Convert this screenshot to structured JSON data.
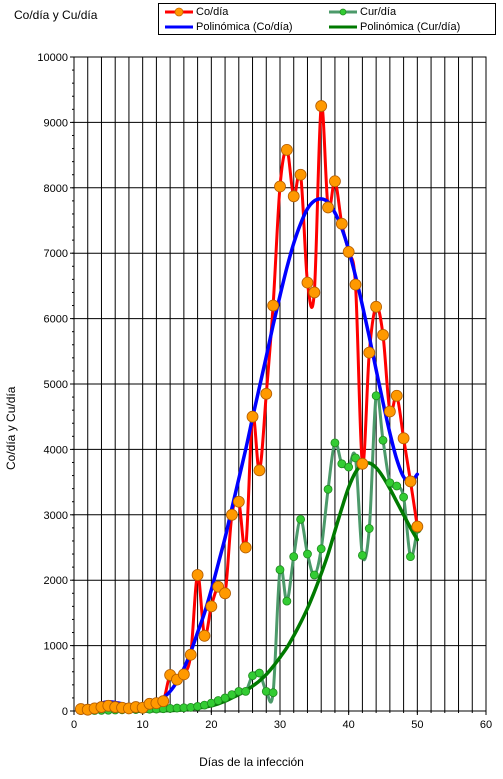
{
  "chart_data": {
    "type": "line",
    "title": "Co/día  y Cu/día",
    "xlabel": "Días de la infección",
    "ylabel": "Co/día  y Cu/día",
    "xlim": [
      0,
      60
    ],
    "ylim": [
      0,
      10000
    ],
    "x_ticks": [
      0,
      10,
      20,
      30,
      40,
      50,
      60
    ],
    "y_ticks": [
      0,
      1000,
      2000,
      3000,
      4000,
      5000,
      6000,
      7000,
      8000,
      9000,
      10000
    ],
    "grid": true,
    "legend_position": "top",
    "series": [
      {
        "name": "Co/día",
        "line_color": "#ff0000",
        "marker_color": "#ff9900",
        "marker": "circle",
        "points": [
          [
            1,
            30
          ],
          [
            2,
            20
          ],
          [
            3,
            40
          ],
          [
            4,
            60
          ],
          [
            5,
            80
          ],
          [
            6,
            60
          ],
          [
            7,
            50
          ],
          [
            8,
            40
          ],
          [
            9,
            60
          ],
          [
            10,
            50
          ],
          [
            11,
            110
          ],
          [
            12,
            120
          ],
          [
            13,
            150
          ],
          [
            14,
            550
          ],
          [
            15,
            480
          ],
          [
            16,
            560
          ],
          [
            17,
            860
          ],
          [
            18,
            2080
          ],
          [
            19,
            1150
          ],
          [
            20,
            1600
          ],
          [
            21,
            1900
          ],
          [
            22,
            1800
          ],
          [
            23,
            3000
          ],
          [
            24,
            3200
          ],
          [
            25,
            2500
          ],
          [
            26,
            4500
          ],
          [
            27,
            3680
          ],
          [
            28,
            4850
          ],
          [
            29,
            6200
          ],
          [
            30,
            8020
          ],
          [
            31,
            8580
          ],
          [
            32,
            7870
          ],
          [
            33,
            8200
          ],
          [
            34,
            6550
          ],
          [
            35,
            6400
          ],
          [
            36,
            9250
          ],
          [
            37,
            7700
          ],
          [
            38,
            8100
          ],
          [
            39,
            7450
          ],
          [
            40,
            7020
          ],
          [
            41,
            6520
          ],
          [
            42,
            3780
          ],
          [
            43,
            5480
          ],
          [
            44,
            6180
          ],
          [
            45,
            5750
          ],
          [
            46,
            4580
          ],
          [
            47,
            4820
          ],
          [
            48,
            4170
          ],
          [
            49,
            3510
          ],
          [
            50,
            2820
          ]
        ]
      },
      {
        "name": "Cur/día",
        "line_color": "#4c9a6a",
        "marker_color": "#33cc33",
        "marker": "circle",
        "points": [
          [
            1,
            10
          ],
          [
            2,
            5
          ],
          [
            3,
            8
          ],
          [
            4,
            10
          ],
          [
            5,
            12
          ],
          [
            6,
            15
          ],
          [
            7,
            18
          ],
          [
            8,
            20
          ],
          [
            9,
            22
          ],
          [
            10,
            25
          ],
          [
            11,
            28
          ],
          [
            12,
            30
          ],
          [
            13,
            35
          ],
          [
            14,
            40
          ],
          [
            15,
            45
          ],
          [
            16,
            50
          ],
          [
            17,
            55
          ],
          [
            18,
            70
          ],
          [
            19,
            90
          ],
          [
            20,
            120
          ],
          [
            21,
            160
          ],
          [
            22,
            200
          ],
          [
            23,
            250
          ],
          [
            24,
            300
          ],
          [
            25,
            300
          ],
          [
            26,
            540
          ],
          [
            27,
            580
          ],
          [
            28,
            300
          ],
          [
            29,
            280
          ],
          [
            30,
            2160
          ],
          [
            31,
            1680
          ],
          [
            32,
            2360
          ],
          [
            33,
            2930
          ],
          [
            34,
            2400
          ],
          [
            35,
            2080
          ],
          [
            36,
            2480
          ],
          [
            37,
            3390
          ],
          [
            38,
            4100
          ],
          [
            39,
            3780
          ],
          [
            40,
            3730
          ],
          [
            41,
            3870
          ],
          [
            42,
            2380
          ],
          [
            43,
            2790
          ],
          [
            44,
            4820
          ],
          [
            45,
            4140
          ],
          [
            46,
            3490
          ],
          [
            47,
            3440
          ],
          [
            48,
            3270
          ],
          [
            49,
            2360
          ],
          [
            50,
            2780
          ]
        ]
      },
      {
        "name": "Polinómica (Co/día)",
        "line_color": "#0000ff",
        "marker": "none",
        "points": [
          [
            1,
            0
          ],
          [
            2,
            40
          ],
          [
            3,
            80
          ],
          [
            4,
            120
          ],
          [
            5,
            140
          ],
          [
            6,
            130
          ],
          [
            7,
            110
          ],
          [
            8,
            80
          ],
          [
            9,
            60
          ],
          [
            10,
            60
          ],
          [
            11,
            70
          ],
          [
            12,
            110
          ],
          [
            13,
            200
          ],
          [
            14,
            300
          ],
          [
            15,
            450
          ],
          [
            16,
            650
          ],
          [
            17,
            900
          ],
          [
            18,
            1200
          ],
          [
            19,
            1500
          ],
          [
            20,
            1850
          ],
          [
            21,
            2250
          ],
          [
            22,
            2650
          ],
          [
            23,
            3100
          ],
          [
            24,
            3550
          ],
          [
            25,
            4000
          ],
          [
            26,
            4480
          ],
          [
            27,
            4950
          ],
          [
            28,
            5420
          ],
          [
            29,
            5900
          ],
          [
            30,
            6350
          ],
          [
            31,
            6780
          ],
          [
            32,
            7150
          ],
          [
            33,
            7450
          ],
          [
            34,
            7680
          ],
          [
            35,
            7800
          ],
          [
            36,
            7830
          ],
          [
            37,
            7780
          ],
          [
            38,
            7620
          ],
          [
            39,
            7380
          ],
          [
            40,
            7050
          ],
          [
            41,
            6650
          ],
          [
            42,
            6200
          ],
          [
            43,
            5720
          ],
          [
            44,
            5220
          ],
          [
            45,
            4720
          ],
          [
            46,
            4250
          ],
          [
            47,
            3850
          ],
          [
            48,
            3580
          ],
          [
            49,
            3500
          ],
          [
            50,
            3620
          ]
        ]
      },
      {
        "name": "Polinómica (Cur/día)",
        "line_color": "#007a00",
        "marker": "none",
        "points": [
          [
            1,
            0
          ],
          [
            3,
            5
          ],
          [
            5,
            5
          ],
          [
            7,
            0
          ],
          [
            9,
            -5
          ],
          [
            11,
            0
          ],
          [
            13,
            5
          ],
          [
            15,
            10
          ],
          [
            17,
            30
          ],
          [
            19,
            60
          ],
          [
            20,
            80
          ],
          [
            21,
            110
          ],
          [
            22,
            150
          ],
          [
            23,
            200
          ],
          [
            24,
            250
          ],
          [
            25,
            310
          ],
          [
            26,
            380
          ],
          [
            27,
            460
          ],
          [
            28,
            560
          ],
          [
            29,
            680
          ],
          [
            30,
            820
          ],
          [
            31,
            970
          ],
          [
            32,
            1150
          ],
          [
            33,
            1350
          ],
          [
            34,
            1570
          ],
          [
            35,
            1820
          ],
          [
            36,
            2100
          ],
          [
            37,
            2400
          ],
          [
            38,
            2750
          ],
          [
            39,
            3100
          ],
          [
            40,
            3420
          ],
          [
            41,
            3650
          ],
          [
            42,
            3770
          ],
          [
            43,
            3790
          ],
          [
            44,
            3720
          ],
          [
            45,
            3580
          ],
          [
            46,
            3400
          ],
          [
            47,
            3200
          ],
          [
            48,
            3000
          ],
          [
            49,
            2800
          ],
          [
            50,
            2620
          ]
        ]
      }
    ]
  }
}
